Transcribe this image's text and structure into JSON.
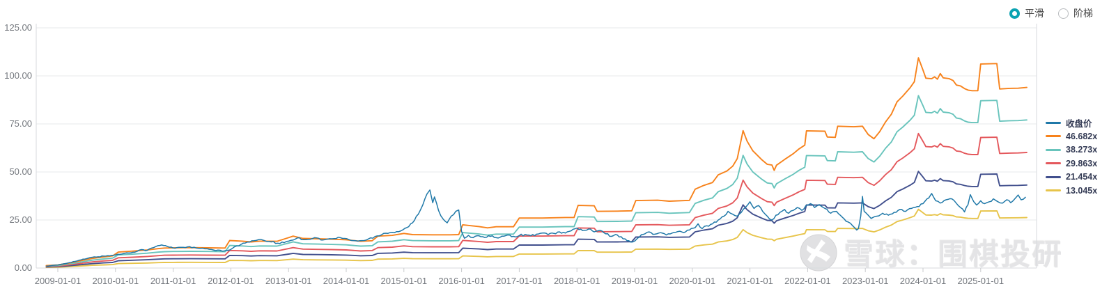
{
  "controls": {
    "smooth_label": "平滑",
    "step_label": "阶梯",
    "selected": "平滑"
  },
  "watermark": {
    "text": "雪球：围棋投研",
    "logo": "xueqiu-logo"
  },
  "colors": {
    "price": "#1f78a8",
    "band_46": "#f7821b",
    "band_38": "#68c4bc",
    "band_29": "#e4585c",
    "band_21": "#414f8d",
    "band_13": "#e7c44a",
    "grid": "#e7e9eb",
    "axis_border": "#d7dade",
    "tick": "#c9cbce",
    "axis_text": "#73777d",
    "legend_text": "#333a54",
    "radio_accent": "#0ba3b2"
  },
  "chart_data": {
    "type": "line",
    "title": "",
    "xlabel": "",
    "ylabel": "",
    "legend_position": "right",
    "grid": true,
    "x_axis": {
      "tick_labels": [
        "2009-01-01",
        "2010-01-01",
        "2011-01-01",
        "2012-01-01",
        "2013-01-01",
        "2014-01-01",
        "2015-01-01",
        "2016-01-01",
        "2017-01-01",
        "2018-01-01",
        "2019-01-01",
        "2020-01-01",
        "2021-01-01",
        "2022-01-01",
        "2023-01-01",
        "2024-01-01",
        "2025-01-01"
      ],
      "tick_years": [
        2009,
        2010,
        2011,
        2012,
        2013,
        2014,
        2015,
        2016,
        2017,
        2018,
        2019,
        2020,
        2021,
        2022,
        2023,
        2024,
        2025
      ],
      "range_years": [
        2008.75,
        2026.0
      ]
    },
    "y_axis": {
      "tick_labels": [
        "0.00",
        "25.00",
        "50.00",
        "75.00",
        "100.00",
        "125.00"
      ],
      "tick_values": [
        0,
        25,
        50,
        75,
        100,
        125
      ],
      "min": 0,
      "max": 125
    },
    "price_series": {
      "name": "收盘价",
      "color": "#1f78a8",
      "noise_amplitude": 0.55,
      "x": [
        2008.8,
        2009.0,
        2009.2,
        2009.4,
        2009.6,
        2009.8,
        2010.0,
        2010.15,
        2010.3,
        2010.45,
        2010.55,
        2010.7,
        2010.8,
        2010.9,
        2011.0,
        2011.1,
        2011.25,
        2011.4,
        2011.55,
        2011.7,
        2011.85,
        2011.95,
        2012.1,
        2012.25,
        2012.4,
        2012.55,
        2012.7,
        2012.85,
        2013.0,
        2013.15,
        2013.3,
        2013.45,
        2013.6,
        2013.75,
        2013.9,
        2014.05,
        2014.2,
        2014.35,
        2014.5,
        2014.65,
        2014.8,
        2014.95,
        2015.05,
        2015.15,
        2015.25,
        2015.33,
        2015.4,
        2015.45,
        2015.5,
        2015.53,
        2015.6,
        2015.68,
        2015.75,
        2015.82,
        2015.9,
        2015.95,
        2016.0,
        2016.05,
        2016.12,
        2016.2,
        2016.3,
        2016.4,
        2016.5,
        2016.6,
        2016.7,
        2016.8,
        2016.9,
        2017.0,
        2017.1,
        2017.2,
        2017.3,
        2017.4,
        2017.5,
        2017.6,
        2017.7,
        2017.8,
        2017.9,
        2018.0,
        2018.1,
        2018.2,
        2018.3,
        2018.4,
        2018.5,
        2018.6,
        2018.7,
        2018.8,
        2018.9,
        2018.97,
        2019.05,
        2019.15,
        2019.25,
        2019.35,
        2019.45,
        2019.55,
        2019.65,
        2019.75,
        2019.85,
        2019.95,
        2020.05,
        2020.1,
        2020.17,
        2020.25,
        2020.35,
        2020.45,
        2020.55,
        2020.62,
        2020.7,
        2020.78,
        2020.85,
        2020.92,
        2021.0,
        2021.07,
        2021.15,
        2021.22,
        2021.3,
        2021.38,
        2021.45,
        2021.52,
        2021.6,
        2021.67,
        2021.75,
        2021.82,
        2021.9,
        2021.97,
        2022.05,
        2022.12,
        2022.2,
        2022.3,
        2022.4,
        2022.5,
        2022.6,
        2022.7,
        2022.78,
        2022.85,
        2022.88,
        2022.92,
        2022.95,
        2022.98,
        2023.05,
        2023.1,
        2023.2,
        2023.3,
        2023.4,
        2023.5,
        2023.6,
        2023.7,
        2023.8,
        2023.9,
        2024.0,
        2024.1,
        2024.15,
        2024.22,
        2024.3,
        2024.4,
        2024.5,
        2024.57,
        2024.65,
        2024.72,
        2024.78,
        2024.82,
        2024.88,
        2024.93,
        2025.0,
        2025.07,
        2025.15,
        2025.22,
        2025.3,
        2025.38,
        2025.45,
        2025.52,
        2025.6,
        2025.65,
        2025.7,
        2025.78
      ],
      "values": [
        1.0,
        1.6,
        2.8,
        4.2,
        5.6,
        6.2,
        6.8,
        7.6,
        8.2,
        9.6,
        9.2,
        11.2,
        12.0,
        11.2,
        10.4,
        10.8,
        11.0,
        10.4,
        10.0,
        9.4,
        8.8,
        9.2,
        11.5,
        13.0,
        14.2,
        14.6,
        13.6,
        12.8,
        14.0,
        15.6,
        14.8,
        15.8,
        14.6,
        15.2,
        15.8,
        14.8,
        14.0,
        14.6,
        16.4,
        18.0,
        18.6,
        19.4,
        21.0,
        23.5,
        28.0,
        33.0,
        38.5,
        40.6,
        34.0,
        37.0,
        30.0,
        25.5,
        23.5,
        27.0,
        29.5,
        30.2,
        19.0,
        15.5,
        17.0,
        15.8,
        16.8,
        15.9,
        16.5,
        15.8,
        16.6,
        17.2,
        16.5,
        16.9,
        17.5,
        16.8,
        17.6,
        18.2,
        17.4,
        18.0,
        18.8,
        18.2,
        19.4,
        20.8,
        19.5,
        20.3,
        18.8,
        19.6,
        17.8,
        16.5,
        17.2,
        15.2,
        14.2,
        13.6,
        15.5,
        17.5,
        18.8,
        17.6,
        18.4,
        17.2,
        18.2,
        19.0,
        18.4,
        19.8,
        21.0,
        23.0,
        20.5,
        22.0,
        23.0,
        25.0,
        27.0,
        29.5,
        28.0,
        27.0,
        29.0,
        31.5,
        34.5,
        31.0,
        32.5,
        29.5,
        27.0,
        25.0,
        27.5,
        29.0,
        30.5,
        28.5,
        30.0,
        31.5,
        30.0,
        32.5,
        33.5,
        31.5,
        33.0,
        31.0,
        28.5,
        29.5,
        26.5,
        24.0,
        22.0,
        19.8,
        20.5,
        27.0,
        37.3,
        29.5,
        27.5,
        25.8,
        27.0,
        28.5,
        27.5,
        29.0,
        30.5,
        29.5,
        31.0,
        32.0,
        33.5,
        36.5,
        38.8,
        35.0,
        33.8,
        35.5,
        36.0,
        34.0,
        31.5,
        29.2,
        33.0,
        38.2,
        34.5,
        32.8,
        35.0,
        33.5,
        34.5,
        36.0,
        34.5,
        33.8,
        35.5,
        34.0,
        36.3,
        38.0,
        35.5,
        37.0
      ]
    },
    "pe_bands": {
      "reference_multiple": 46.682,
      "x": [
        2008.8,
        2009.0,
        2009.2,
        2009.4,
        2009.6,
        2009.8,
        2009.95,
        2010.05,
        2010.3,
        2010.55,
        2010.75,
        2010.85,
        2011.0,
        2011.3,
        2011.6,
        2011.9,
        2011.98,
        2012.2,
        2012.35,
        2012.5,
        2012.8,
        2013.0,
        2013.08,
        2013.25,
        2013.5,
        2013.75,
        2014.0,
        2014.25,
        2014.45,
        2014.55,
        2014.8,
        2015.0,
        2015.15,
        2015.5,
        2015.8,
        2015.95,
        2016.02,
        2016.3,
        2016.45,
        2016.6,
        2016.9,
        2017.0,
        2017.4,
        2017.8,
        2017.95,
        2018.02,
        2018.3,
        2018.35,
        2018.7,
        2018.95,
        2019.02,
        2019.4,
        2019.6,
        2019.95,
        2020.05,
        2020.2,
        2020.35,
        2020.45,
        2020.6,
        2020.7,
        2020.78,
        2020.88,
        2020.95,
        2021.05,
        2021.2,
        2021.3,
        2021.38,
        2021.42,
        2021.46,
        2021.6,
        2021.75,
        2021.85,
        2021.95,
        2021.98,
        2022.3,
        2022.34,
        2022.48,
        2022.52,
        2022.8,
        2022.95,
        2023.05,
        2023.15,
        2023.25,
        2023.35,
        2023.45,
        2023.55,
        2023.65,
        2023.78,
        2023.85,
        2023.92,
        2024.0,
        2024.05,
        2024.15,
        2024.2,
        2024.25,
        2024.3,
        2024.35,
        2024.45,
        2024.52,
        2024.58,
        2024.65,
        2024.72,
        2024.78,
        2024.85,
        2024.95,
        2025.0,
        2025.28,
        2025.33,
        2025.5,
        2025.65,
        2025.8
      ],
      "reference_values": [
        1.3,
        1.6,
        2.6,
        3.8,
        5.0,
        5.8,
        6.3,
        8.3,
        8.8,
        9.4,
        10.1,
        10.4,
        10.5,
        10.6,
        10.5,
        10.4,
        14.3,
        14.0,
        13.6,
        14.0,
        13.9,
        15.8,
        16.6,
        15.4,
        15.2,
        15.0,
        14.7,
        13.9,
        14.2,
        16.6,
        17.0,
        18.0,
        17.4,
        17.3,
        17.3,
        17.4,
        22.5,
        21.6,
        20.9,
        21.5,
        21.5,
        26.0,
        26.0,
        26.3,
        26.3,
        32.6,
        32.4,
        29.5,
        29.6,
        29.8,
        35.1,
        35.3,
        34.8,
        35.2,
        41.0,
        43.0,
        44.5,
        48.5,
        50.5,
        53.0,
        57.0,
        71.5,
        66.0,
        61.0,
        56.5,
        54.0,
        53.6,
        50.8,
        53.5,
        56.5,
        59.5,
        62.0,
        64.0,
        71.4,
        71.2,
        68.2,
        68.0,
        73.8,
        73.5,
        73.8,
        69.5,
        67.3,
        71.0,
        76.0,
        80.0,
        86.5,
        89.5,
        94.0,
        97.0,
        109.4,
        103.0,
        98.8,
        98.5,
        99.5,
        98.3,
        101.2,
        99.0,
        98.6,
        97.6,
        95.2,
        94.8,
        93.4,
        92.6,
        92.3,
        92.3,
        106.2,
        106.4,
        93.2,
        93.5,
        93.6,
        94.0
      ],
      "bands": [
        {
          "name": "46.682x",
          "multiple": 46.682,
          "color": "#f7821b"
        },
        {
          "name": "38.273x",
          "multiple": 38.273,
          "color": "#68c4bc"
        },
        {
          "name": "29.863x",
          "multiple": 29.863,
          "color": "#e4585c"
        },
        {
          "name": "21.454x",
          "multiple": 21.454,
          "color": "#414f8d"
        },
        {
          "name": "13.045x",
          "multiple": 13.045,
          "color": "#e7c44a"
        }
      ]
    }
  }
}
